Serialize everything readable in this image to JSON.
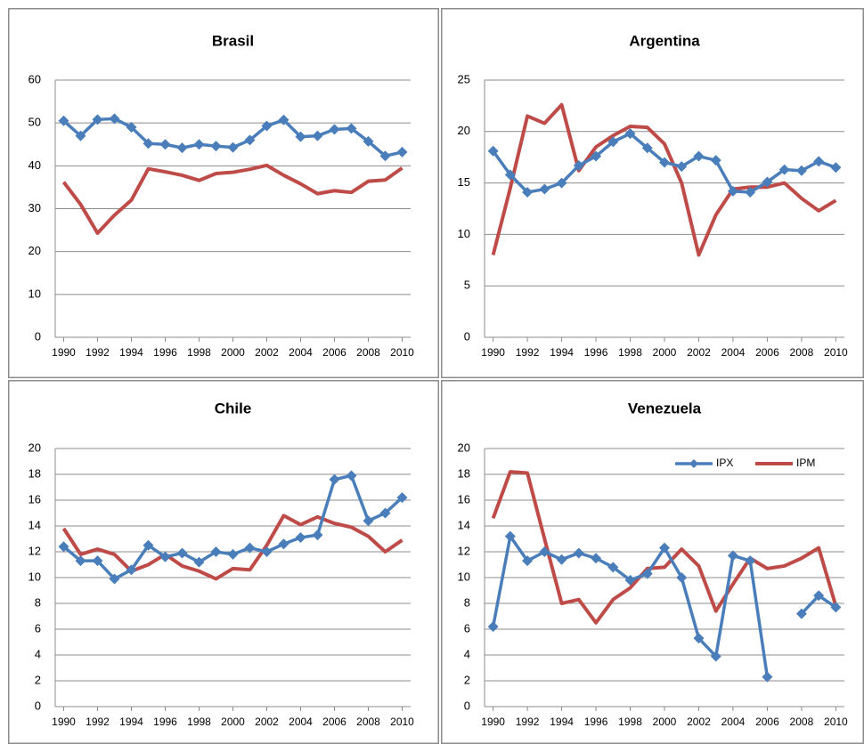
{
  "chart_data": [
    {
      "type": "line",
      "title": "Brasil",
      "x": [
        1990,
        1991,
        1992,
        1993,
        1994,
        1995,
        1996,
        1997,
        1998,
        1999,
        2000,
        2001,
        2002,
        2003,
        2004,
        2005,
        2006,
        2007,
        2008,
        2009,
        2010
      ],
      "xlim": [
        1989.5,
        2010.5
      ],
      "xticks": [
        1990,
        1992,
        1994,
        1996,
        1998,
        2000,
        2002,
        2004,
        2006,
        2008,
        2010
      ],
      "ylim": [
        0,
        60
      ],
      "yticks": [
        0,
        10,
        20,
        30,
        40,
        50,
        60
      ],
      "grid": true,
      "series": [
        {
          "color": "#4a7ebb",
          "marker": "diamond",
          "values": [
            50.5,
            47,
            50.8,
            51,
            49,
            45.2,
            45,
            44.2,
            45,
            44.6,
            44.3,
            46,
            49.3,
            50.7,
            46.8,
            47,
            48.5,
            48.7,
            45.7,
            42.3,
            43.2
          ]
        },
        {
          "color": "#be4b48",
          "values": [
            36.2,
            31,
            24.3,
            28.5,
            32,
            39.3,
            38.6,
            37.8,
            36.6,
            38.2,
            38.5,
            39.2,
            40.1,
            37.8,
            35.8,
            33.5,
            34.2,
            33.8,
            36.4,
            36.7,
            39.5
          ]
        }
      ]
    },
    {
      "type": "line",
      "title": "Argentina",
      "x": [
        1990,
        1991,
        1992,
        1993,
        1994,
        1995,
        1996,
        1997,
        1998,
        1999,
        2000,
        2001,
        2002,
        2003,
        2004,
        2005,
        2006,
        2007,
        2008,
        2009,
        2010
      ],
      "xlim": [
        1989.5,
        2010.5
      ],
      "xticks": [
        1990,
        1992,
        1994,
        1996,
        1998,
        2000,
        2002,
        2004,
        2006,
        2008,
        2010
      ],
      "ylim": [
        0,
        25
      ],
      "yticks": [
        0,
        5,
        10,
        15,
        20,
        25
      ],
      "grid": true,
      "series": [
        {
          "color": "#4a7ebb",
          "marker": "diamond",
          "values": [
            18.1,
            15.8,
            14.1,
            14.4,
            15,
            16.7,
            17.6,
            19,
            19.8,
            18.4,
            17,
            16.6,
            17.6,
            17.2,
            14.2,
            14.1,
            15.1,
            16.3,
            16.2,
            17.1,
            16.5
          ]
        },
        {
          "color": "#be4b48",
          "values": [
            8,
            14.5,
            21.5,
            20.8,
            22.6,
            16.2,
            18.5,
            19.6,
            20.5,
            20.4,
            18.8,
            15,
            8,
            11.9,
            14.4,
            14.6,
            14.6,
            15,
            13.5,
            12.3,
            13.3
          ]
        }
      ]
    },
    {
      "type": "line",
      "title": "Chile",
      "x": [
        1990,
        1991,
        1992,
        1993,
        1994,
        1995,
        1996,
        1997,
        1998,
        1999,
        2000,
        2001,
        2002,
        2003,
        2004,
        2005,
        2006,
        2007,
        2008,
        2009,
        2010
      ],
      "xlim": [
        1989.5,
        2010.5
      ],
      "xticks": [
        1990,
        1992,
        1994,
        1996,
        1998,
        2000,
        2002,
        2004,
        2006,
        2008,
        2010
      ],
      "ylim": [
        0,
        20
      ],
      "yticks": [
        0,
        2,
        4,
        6,
        8,
        10,
        12,
        14,
        16,
        18,
        20
      ],
      "grid": true,
      "series": [
        {
          "color": "#4a7ebb",
          "marker": "diamond",
          "values": [
            12.4,
            11.3,
            11.3,
            9.9,
            10.6,
            12.5,
            11.6,
            11.9,
            11.2,
            12,
            11.8,
            12.3,
            12,
            12.6,
            13.1,
            13.3,
            17.6,
            17.9,
            14.4,
            15,
            16.2
          ]
        },
        {
          "color": "#be4b48",
          "values": [
            13.8,
            11.8,
            12.2,
            11.8,
            10.5,
            11,
            11.8,
            10.9,
            10.5,
            9.9,
            10.7,
            10.6,
            12.5,
            14.8,
            14.1,
            14.7,
            14.2,
            13.9,
            13.2,
            12,
            12.9
          ]
        }
      ]
    },
    {
      "type": "line",
      "title": "Venezuela",
      "x": [
        1990,
        1991,
        1992,
        1993,
        1994,
        1995,
        1996,
        1997,
        1998,
        1999,
        2000,
        2001,
        2002,
        2003,
        2004,
        2005,
        2006,
        2007,
        2008,
        2009,
        2010
      ],
      "xlim": [
        1989.5,
        2010.5
      ],
      "xticks": [
        1990,
        1992,
        1994,
        1996,
        1998,
        2000,
        2002,
        2004,
        2006,
        2008,
        2010
      ],
      "ylim": [
        0,
        20
      ],
      "yticks": [
        0,
        2,
        4,
        6,
        8,
        10,
        12,
        14,
        16,
        18,
        20
      ],
      "grid": true,
      "legend": "top-right",
      "series": [
        {
          "name": "IPX",
          "color": "#4a7ebb",
          "marker": "diamond",
          "values": [
            6.2,
            13.2,
            11.3,
            12,
            11.4,
            11.9,
            11.5,
            10.8,
            9.8,
            10.3,
            12.3,
            10,
            5.3,
            3.9,
            11.7,
            11.3,
            2.3,
            null,
            7.2,
            8.6,
            7.7
          ]
        },
        {
          "name": "IPM",
          "color": "#be4b48",
          "values": [
            14.6,
            18.2,
            18.1,
            13,
            8,
            8.3,
            6.5,
            8.3,
            9.2,
            10.7,
            10.8,
            12.2,
            10.9,
            7.4,
            9.5,
            11.5,
            10.7,
            10.9,
            11.5,
            12.3,
            7.8
          ]
        }
      ]
    }
  ]
}
